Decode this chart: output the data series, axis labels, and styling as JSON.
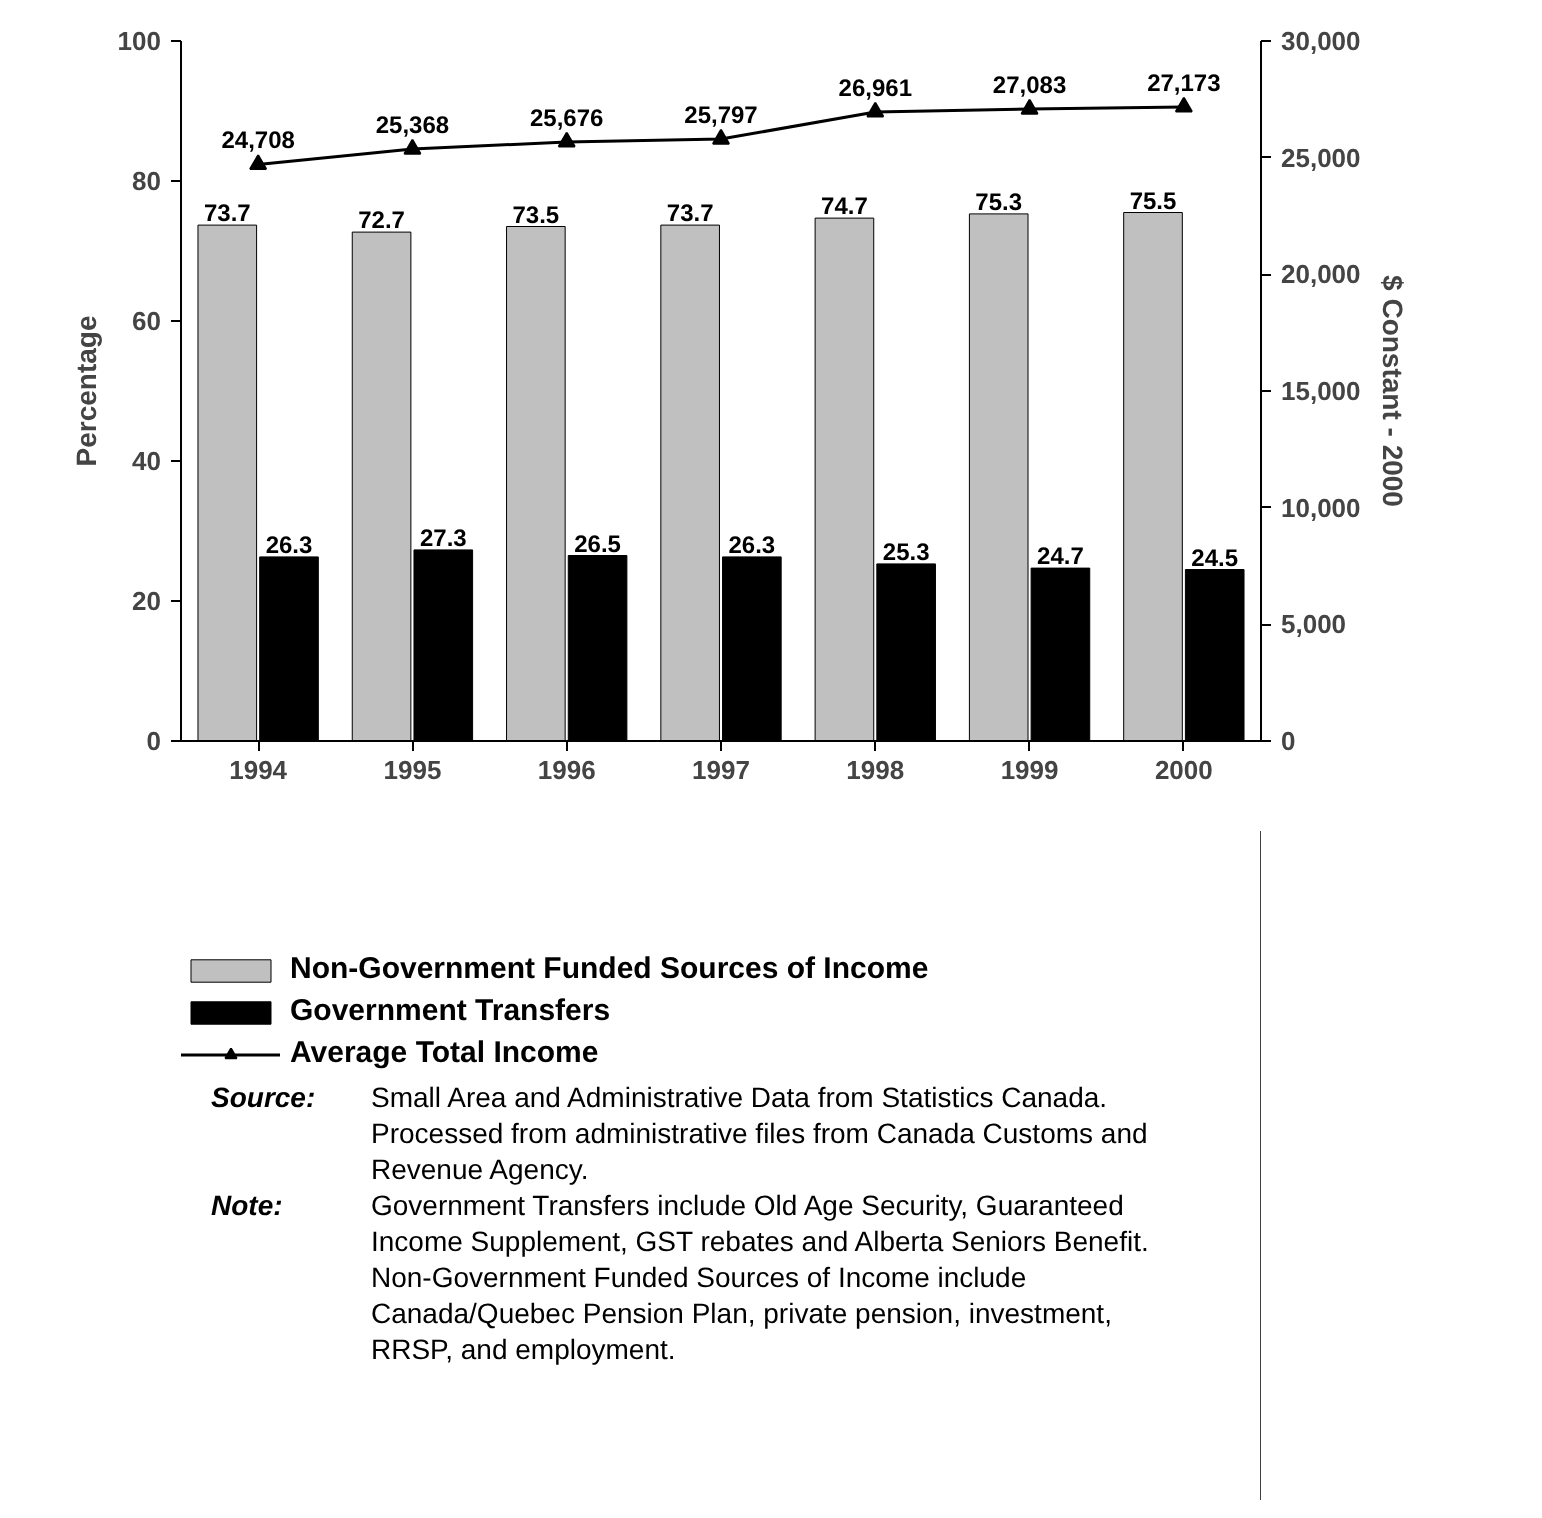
{
  "chart_data": {
    "type": "bar",
    "ylabel": "Percentage",
    "y2label": "$ Constant - 2000",
    "categories": [
      "1994",
      "1995",
      "1996",
      "1997",
      "1998",
      "1999",
      "2000"
    ],
    "series": [
      {
        "name": "Non-Government Funded Sources of Income",
        "color": "#c0c0c0",
        "values": [
          73.7,
          72.7,
          73.5,
          73.7,
          74.7,
          75.3,
          75.5
        ]
      },
      {
        "name": "Government Transfers",
        "color": "#000000",
        "values": [
          26.3,
          27.3,
          26.5,
          26.3,
          25.3,
          24.7,
          24.5
        ]
      },
      {
        "name": "Average Total Income",
        "type": "line",
        "axis": "y2",
        "color": "#000000",
        "marker": "triangle",
        "values": [
          24708,
          25368,
          25676,
          25797,
          26961,
          27083,
          27173
        ],
        "value_labels": [
          "24,708",
          "25,368",
          "25,676",
          "25,797",
          "26,961",
          "27,083",
          "27,173"
        ]
      }
    ],
    "ylim": [
      0,
      100
    ],
    "yticks": [
      0,
      20,
      40,
      60,
      80,
      100
    ],
    "y2lim": [
      0,
      30000
    ],
    "y2ticks": [
      0,
      {
        "value": 5000,
        "label": "5,000"
      },
      {
        "value": 10000,
        "label": "10,000"
      },
      {
        "value": 15000,
        "label": "15,000"
      },
      {
        "value": 20000,
        "label": "20,000"
      },
      {
        "value": 25000,
        "label": "25,000"
      },
      {
        "value": 30000,
        "label": "30,000"
      }
    ],
    "data_labels": true,
    "grid": false,
    "legend": "bottom",
    "annotations": [
      "Source: Small Area and Administrative Data from Statistics Canada. Processed from administrative files from Canada Customs and Revenue Agency.",
      "Note: Government Transfers include Old Age Security, Guaranteed Income Supplement, GST rebates and Alberta Seniors Benefit. Non-Government Funded Sources of Income include Canada/Quebec Pension Plan, private pension, investment, RRSP, and employment."
    ]
  }
}
